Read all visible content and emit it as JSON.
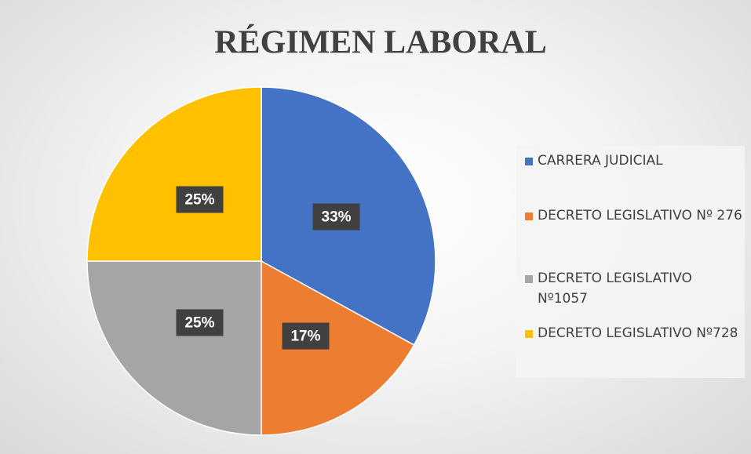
{
  "chart_data": {
    "type": "pie",
    "title": "RÉGIMEN LABORAL",
    "categories": [
      "CARRERA JUDICIAL",
      "DECRETO LEGISLATIVO Nº 276",
      "DECRETO LEGISLATIVO Nº1057",
      "DECRETO LEGISLATIVO Nº728"
    ],
    "values": [
      33,
      17,
      25,
      25
    ],
    "value_labels": [
      "33%",
      "17%",
      "25%",
      "25%"
    ],
    "colors": [
      "#4472c4",
      "#ed7d31",
      "#a5a5a5",
      "#ffc000"
    ],
    "legend": "right"
  }
}
